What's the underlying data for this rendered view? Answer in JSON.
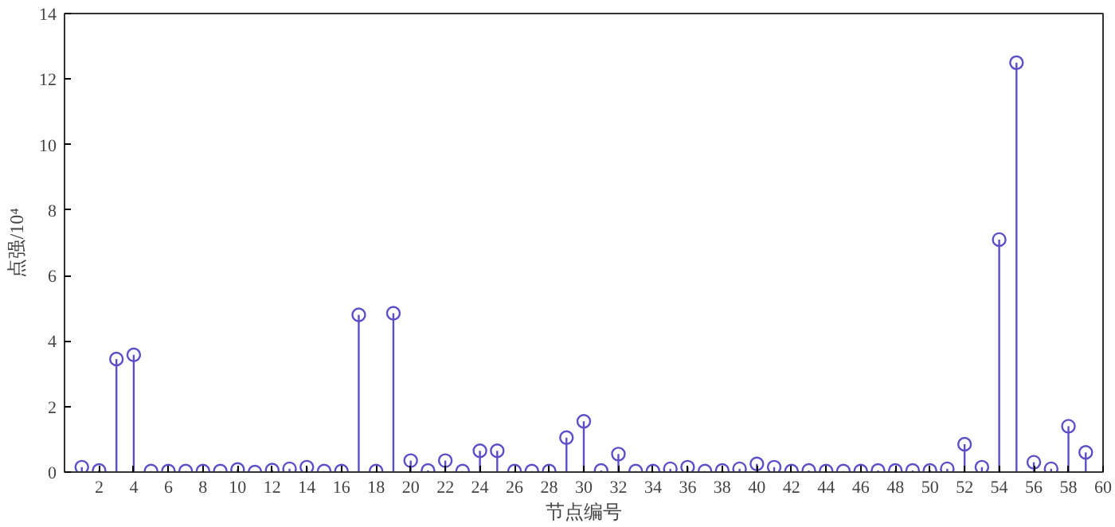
{
  "chart_data": {
    "type": "lollipop",
    "xlabel": "节点编号",
    "ylabel": "点强/10⁴",
    "x": [
      1,
      2,
      3,
      4,
      5,
      6,
      7,
      8,
      9,
      10,
      11,
      12,
      13,
      14,
      15,
      16,
      17,
      18,
      19,
      20,
      21,
      22,
      23,
      24,
      25,
      26,
      27,
      28,
      29,
      30,
      31,
      32,
      33,
      34,
      35,
      36,
      37,
      38,
      39,
      40,
      41,
      42,
      43,
      44,
      45,
      46,
      47,
      48,
      49,
      50,
      51,
      52,
      53,
      54,
      55,
      56,
      57,
      58,
      59
    ],
    "series": [
      {
        "color": "#5b4fc8",
        "values": [
          0.15,
          0.05,
          3.45,
          3.58,
          0.03,
          0.03,
          0.03,
          0.03,
          0.03,
          0.08,
          0.0,
          0.06,
          0.1,
          0.15,
          0.03,
          0.03,
          4.8,
          0.03,
          4.85,
          0.35,
          0.05,
          0.35,
          0.03,
          0.65,
          0.65,
          0.03,
          0.03,
          0.03,
          1.05,
          1.55,
          0.05,
          0.55,
          0.03,
          0.03,
          0.1,
          0.15,
          0.03,
          0.05,
          0.1,
          0.25,
          0.15,
          0.03,
          0.05,
          0.03,
          0.03,
          0.03,
          0.05,
          0.05,
          0.05,
          0.05,
          0.1,
          0.85,
          0.15,
          7.1,
          12.5,
          0.3,
          0.1,
          1.4,
          0.6
        ]
      }
    ],
    "xlim": [
      0,
      60
    ],
    "ylim": [
      0,
      14
    ],
    "xticks": [
      {
        "value": 0,
        "label": null
      },
      2,
      4,
      6,
      8,
      10,
      12,
      14,
      16,
      18,
      20,
      22,
      24,
      26,
      28,
      30,
      32,
      34,
      36,
      38,
      40,
      42,
      44,
      46,
      48,
      50,
      52,
      54,
      56,
      58,
      60
    ],
    "yticks": [
      0,
      2,
      4,
      6,
      8,
      10,
      12,
      14
    ],
    "marker": "circle",
    "grid": false
  }
}
